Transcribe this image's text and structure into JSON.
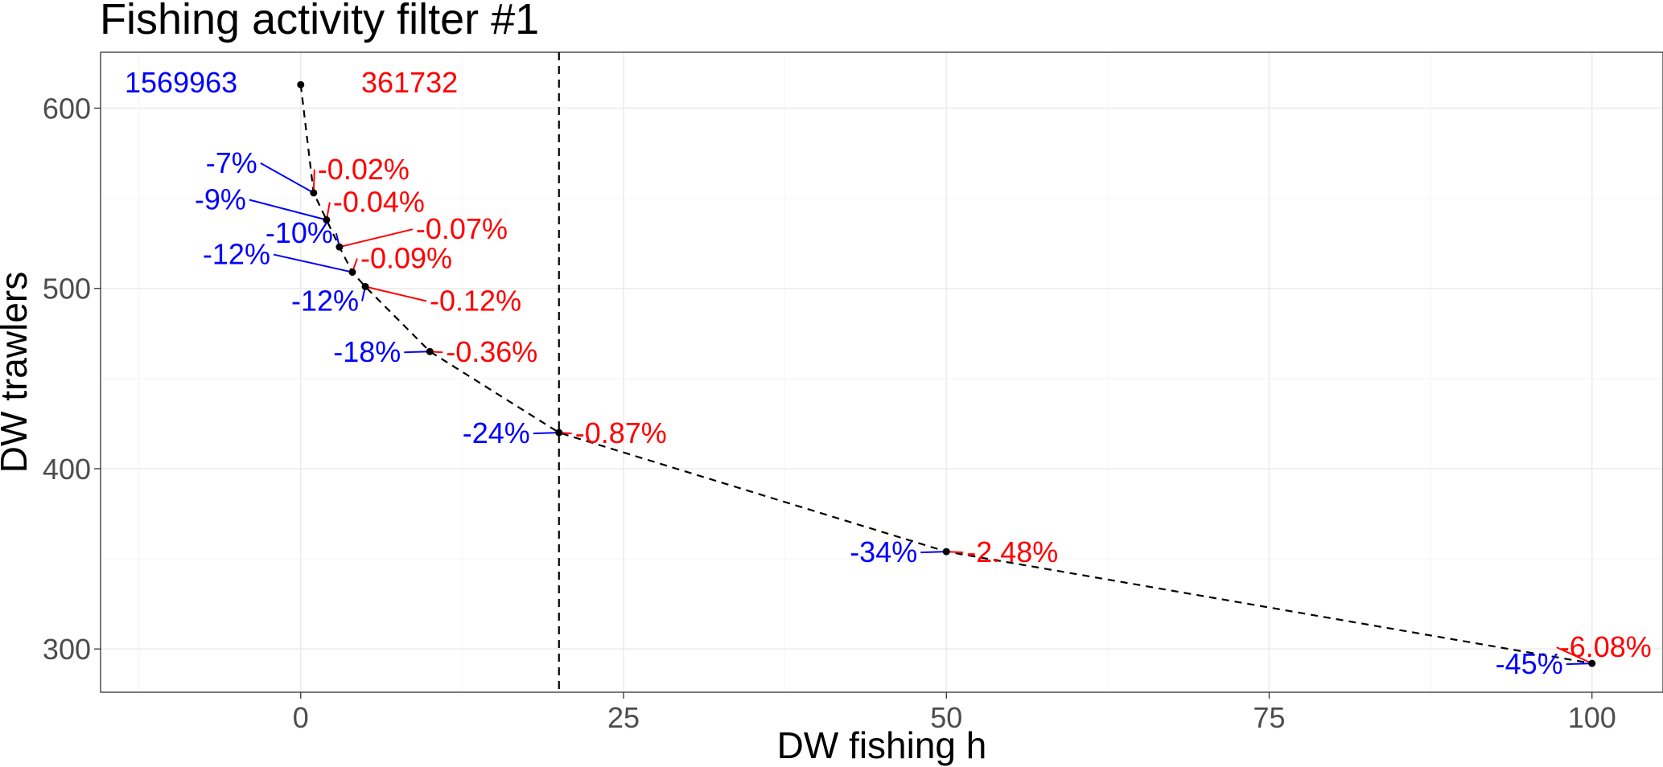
{
  "chart_data": {
    "type": "line",
    "title": "Fishing activity filter #1",
    "xlabel": "DW fishing h",
    "ylabel": "DW trawlers",
    "xlim": [
      -15.5,
      105.5
    ],
    "ylim": [
      276,
      631
    ],
    "x_ticks": [
      0,
      25,
      50,
      75,
      100
    ],
    "x_tick_labels": [
      "0",
      "25",
      "50",
      "75",
      "100"
    ],
    "y_ticks": [
      300,
      400,
      500,
      600
    ],
    "y_tick_labels": [
      "300",
      "400",
      "500",
      "600"
    ],
    "grid": true,
    "legend": "none",
    "threshold_x": 20,
    "colors": {
      "blue_label": "#0000ff",
      "red_label": "#ff0000",
      "line": "#000000"
    },
    "totals": {
      "blue": "1569963",
      "red": "361732"
    },
    "points": [
      {
        "x": 0,
        "y": 613,
        "blue": "",
        "red": ""
      },
      {
        "x": 1,
        "y": 553,
        "blue": "-7%",
        "red": "-0.02%"
      },
      {
        "x": 2,
        "y": 538,
        "blue": "-9%",
        "red": "-0.04%"
      },
      {
        "x": 3,
        "y": 523,
        "blue": "-10%",
        "red": "-0.07%"
      },
      {
        "x": 4,
        "y": 509,
        "blue": "-12%",
        "red": "-0.09%"
      },
      {
        "x": 5,
        "y": 501,
        "blue": "-12%",
        "red": "-0.12%"
      },
      {
        "x": 10,
        "y": 465,
        "blue": "-18%",
        "red": "-0.36%"
      },
      {
        "x": 20,
        "y": 420,
        "blue": "-24%",
        "red": "-0.87%"
      },
      {
        "x": 50,
        "y": 354,
        "blue": "-34%",
        "red": "-2.48%"
      },
      {
        "x": 100,
        "y": 292,
        "blue": "-45%",
        "red": "-6.08%"
      }
    ]
  }
}
